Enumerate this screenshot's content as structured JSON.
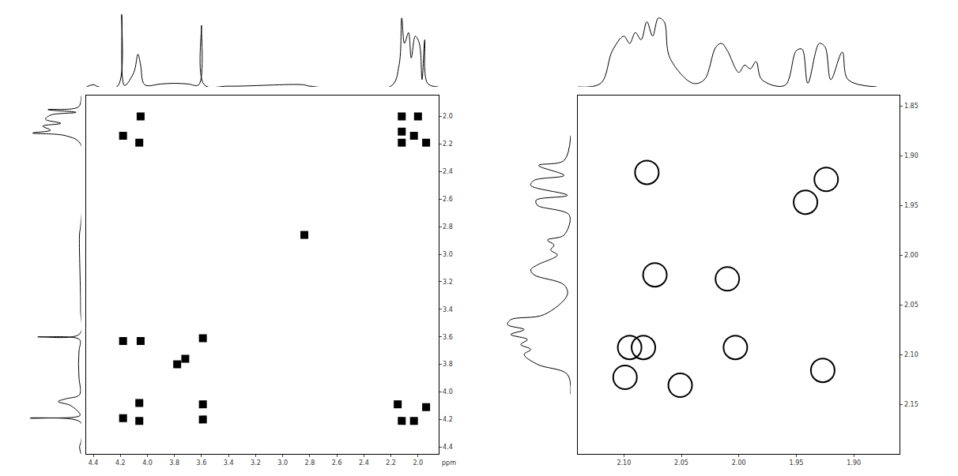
{
  "chart_data": [
    {
      "type": "scatter",
      "xlabel": "ppm",
      "color": "#000000",
      "marker": "square",
      "xlim": [
        4.45,
        1.85
      ],
      "ylim": [
        4.45,
        1.85
      ],
      "xticks": [
        4.4,
        4.2,
        {
          "value": 4.0,
          "label": "4.0"
        },
        3.8,
        3.6,
        3.4,
        3.2,
        {
          "value": 3.0,
          "label": "3.0"
        },
        2.8,
        2.6,
        2.4,
        2.2,
        {
          "value": 2.0,
          "label": "2.0"
        }
      ],
      "yticks": [
        {
          "value": 2.0,
          "label": "2.0"
        },
        2.2,
        2.4,
        2.6,
        2.8,
        {
          "value": 3.0,
          "label": "3.0"
        },
        3.2,
        3.4,
        3.6,
        3.8,
        {
          "value": 4.0,
          "label": "4.0"
        },
        4.2,
        4.4
      ],
      "x": [
        4.18,
        4.06,
        3.59,
        3.78,
        3.72,
        2.84,
        4.05,
        4.18,
        4.06,
        4.18,
        4.05,
        3.59,
        3.59,
        2.12,
        2.0,
        2.12,
        2.03,
        1.94,
        2.12,
        2.15,
        1.94,
        2.12,
        2.03,
        4.06
      ],
      "y": [
        4.19,
        4.08,
        3.61,
        3.8,
        3.76,
        2.86,
        2.0,
        2.14,
        2.19,
        3.63,
        3.63,
        4.09,
        4.2,
        2.0,
        2.0,
        2.11,
        2.14,
        2.19,
        2.19,
        4.09,
        4.11,
        4.21,
        4.21,
        4.21
      ],
      "projection": {
        "x": [
          4.45,
          4.4,
          4.36,
          4.22,
          4.19,
          4.17,
          4.1,
          4.07,
          4.05,
          4.02,
          3.9,
          3.8,
          3.7,
          3.62,
          3.6,
          3.58,
          3.4,
          2.85,
          2.8,
          2.2,
          2.14,
          2.12,
          2.1,
          2.07,
          2.05,
          2.02,
          1.99,
          1.97,
          1.95,
          1.93,
          1.85
        ],
        "values": [
          0,
          3,
          0,
          1,
          100,
          2,
          20,
          45,
          30,
          3,
          4,
          5,
          4,
          3,
          85,
          3,
          1,
          3,
          1,
          1,
          30,
          95,
          60,
          75,
          40,
          70,
          60,
          10,
          65,
          5,
          0
        ],
        "ylim": [
          0,
          105
        ]
      }
    },
    {
      "type": "scatter",
      "color": "#000000",
      "marker": "circle-open",
      "xlim": [
        2.14,
        1.86
      ],
      "ylim": [
        2.2,
        1.84
      ],
      "xticks": [
        {
          "value": 2.1,
          "label": "2.10"
        },
        2.05,
        {
          "value": 2.0,
          "label": "2.00"
        },
        1.95,
        {
          "value": 1.9,
          "label": "1.90"
        }
      ],
      "yticks": [
        1.85,
        {
          "value": 1.9,
          "label": "1.90"
        },
        1.95,
        {
          "value": 2.0,
          "label": "2.00"
        },
        2.05,
        {
          "value": 2.1,
          "label": "2.10"
        },
        2.15
      ],
      "x": [
        2.08,
        1.924,
        1.942,
        2.073,
        2.01,
        2.083,
        2.003,
        1.927,
        2.099,
        2.095,
        2.051
      ],
      "y": [
        1.917,
        1.924,
        1.947,
        2.02,
        2.024,
        2.093,
        2.093,
        2.116,
        2.123,
        2.093,
        2.131
      ],
      "projection": {
        "x": [
          2.14,
          2.12,
          2.11,
          2.1,
          2.095,
          2.09,
          2.085,
          2.08,
          2.075,
          2.07,
          2.065,
          2.06,
          2.04,
          2.03,
          2.02,
          2.015,
          2.01,
          2.0,
          1.995,
          1.99,
          1.985,
          1.98,
          1.96,
          1.95,
          1.945,
          1.94,
          1.93,
          1.925,
          1.92,
          1.91,
          1.905,
          1.88
        ],
        "values": [
          0,
          5,
          50,
          70,
          60,
          75,
          65,
          90,
          70,
          95,
          90,
          40,
          5,
          10,
          55,
          60,
          50,
          20,
          30,
          25,
          35,
          10,
          2,
          50,
          52,
          5,
          60,
          55,
          10,
          48,
          10,
          0
        ],
        "ylim": [
          0,
          105
        ]
      }
    }
  ]
}
